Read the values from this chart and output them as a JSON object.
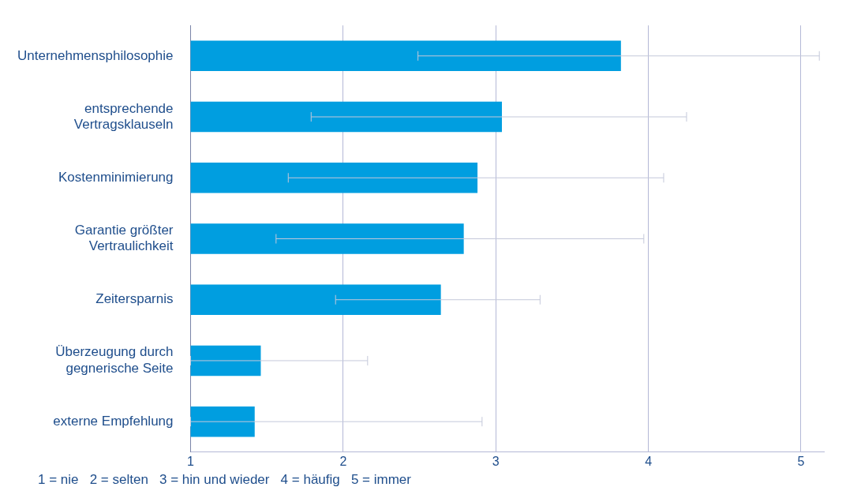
{
  "chart_data": {
    "type": "bar",
    "orientation": "horizontal",
    "categories": [
      "Unternehmensphilosophie",
      "entsprechende Vertragsklauseln",
      "Kostenminimierung",
      "Garantie größter Vertraulichkeit",
      "Zeitersparnis",
      "Überzeugung durch gegnerische Seite",
      "externe Empfehlung"
    ],
    "values": [
      3.82,
      3.04,
      2.88,
      2.79,
      2.64,
      1.46,
      1.42
    ],
    "errors": [
      [
        2.49,
        5.12
      ],
      [
        1.79,
        4.25
      ],
      [
        1.64,
        4.1
      ],
      [
        1.56,
        3.97
      ],
      [
        1.95,
        3.29
      ],
      [
        1,
        2.16
      ],
      [
        1,
        2.91
      ]
    ],
    "color": "#009ee0",
    "xlim": [
      1,
      5.15
    ],
    "xticks": [
      1,
      2,
      3,
      4,
      5
    ],
    "grid": "x",
    "legend": false,
    "annotations": [
      "1 = nie   2 = selten   3 = hin und wieder   4 = häufig   5 = immer"
    ]
  }
}
